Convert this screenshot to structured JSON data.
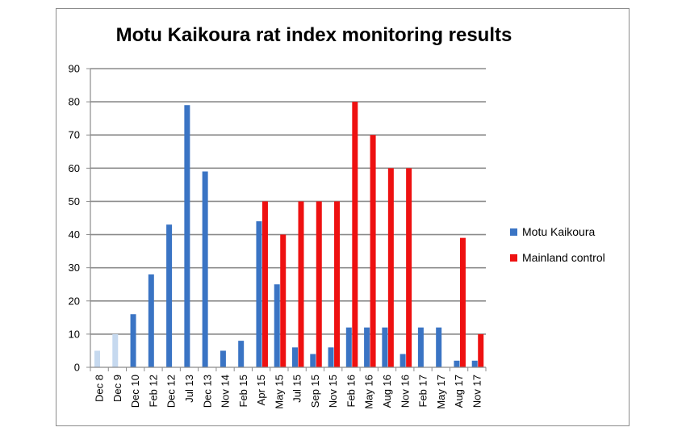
{
  "chart_data": {
    "type": "bar",
    "title": "Motu Kaikoura rat index monitoring results",
    "xlabel": "",
    "ylabel": "",
    "ylim": [
      0,
      90
    ],
    "yticks": [
      0,
      10,
      20,
      30,
      40,
      50,
      60,
      70,
      80,
      90
    ],
    "grid": true,
    "legend_position": "right",
    "categories": [
      "Dec 8",
      "Dec 9",
      "Dec 10",
      "Feb 12",
      "Dec 12",
      "Jul 13",
      "Dec 13",
      "Nov 14",
      "Feb 15",
      "Apr 15",
      "May 15",
      "Jul 15",
      "Sep 15",
      "Nov 15",
      "Feb 16",
      "May 16",
      "Aug 16",
      "Nov 16",
      "Feb 17",
      "May 17",
      "Aug 17",
      "Nov 17"
    ],
    "series": [
      {
        "name": "Motu Kaikoura",
        "color": "#3a74c4",
        "light_color": "#c6d9ef",
        "light_indices": [
          0,
          1
        ],
        "values": [
          5,
          10,
          16,
          28,
          43,
          79,
          59,
          5,
          8,
          44,
          25,
          6,
          4,
          6,
          12,
          12,
          12,
          4,
          12,
          12,
          2,
          2
        ]
      },
      {
        "name": "Mainland control",
        "color": "#ee1111",
        "values": [
          null,
          null,
          null,
          null,
          null,
          null,
          null,
          null,
          null,
          50,
          40,
          50,
          50,
          50,
          80,
          70,
          60,
          60,
          null,
          null,
          39,
          10
        ]
      }
    ]
  }
}
